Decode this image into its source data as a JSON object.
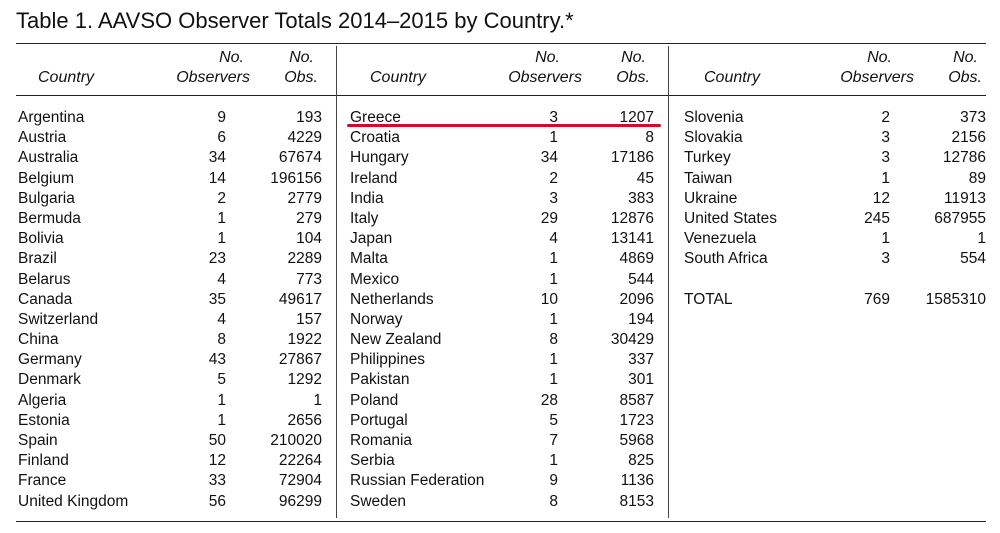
{
  "title": "Table 1. AAVSO Observer Totals 2014–2015 by Country.*",
  "headers": {
    "country": "Country",
    "no": "No.",
    "observers": "Observers",
    "obs": "Obs."
  },
  "columns": [
    [
      {
        "country": "Argentina",
        "observers": "9",
        "obs": "193"
      },
      {
        "country": "Austria",
        "observers": "6",
        "obs": "4229"
      },
      {
        "country": "Australia",
        "observers": "34",
        "obs": "67674"
      },
      {
        "country": "Belgium",
        "observers": "14",
        "obs": "196156"
      },
      {
        "country": "Bulgaria",
        "observers": "2",
        "obs": "2779"
      },
      {
        "country": "Bermuda",
        "observers": "1",
        "obs": "279"
      },
      {
        "country": "Bolivia",
        "observers": "1",
        "obs": "104"
      },
      {
        "country": "Brazil",
        "observers": "23",
        "obs": "2289"
      },
      {
        "country": "Belarus",
        "observers": "4",
        "obs": "773"
      },
      {
        "country": "Canada",
        "observers": "35",
        "obs": "49617"
      },
      {
        "country": "Switzerland",
        "observers": "4",
        "obs": "157"
      },
      {
        "country": "China",
        "observers": "8",
        "obs": "1922"
      },
      {
        "country": "Germany",
        "observers": "43",
        "obs": "27867"
      },
      {
        "country": "Denmark",
        "observers": "5",
        "obs": "1292"
      },
      {
        "country": "Algeria",
        "observers": "1",
        "obs": "1"
      },
      {
        "country": "Estonia",
        "observers": "1",
        "obs": "2656"
      },
      {
        "country": "Spain",
        "observers": "50",
        "obs": "210020"
      },
      {
        "country": "Finland",
        "observers": "12",
        "obs": "22264"
      },
      {
        "country": "France",
        "observers": "33",
        "obs": "72904"
      },
      {
        "country": "United Kingdom",
        "observers": "56",
        "obs": "96299"
      }
    ],
    [
      {
        "country": "Greece",
        "observers": "3",
        "obs": "1207"
      },
      {
        "country": "Croatia",
        "observers": "1",
        "obs": "8"
      },
      {
        "country": "Hungary",
        "observers": "34",
        "obs": "17186"
      },
      {
        "country": "Ireland",
        "observers": "2",
        "obs": "45"
      },
      {
        "country": "India",
        "observers": "3",
        "obs": "383"
      },
      {
        "country": "Italy",
        "observers": "29",
        "obs": "12876"
      },
      {
        "country": "Japan",
        "observers": "4",
        "obs": "13141"
      },
      {
        "country": "Malta",
        "observers": "1",
        "obs": "4869"
      },
      {
        "country": "Mexico",
        "observers": "1",
        "obs": "544"
      },
      {
        "country": "Netherlands",
        "observers": "10",
        "obs": "2096"
      },
      {
        "country": "Norway",
        "observers": "1",
        "obs": "194"
      },
      {
        "country": "New Zealand",
        "observers": "8",
        "obs": "30429"
      },
      {
        "country": "Philippines",
        "observers": "1",
        "obs": "337"
      },
      {
        "country": "Pakistan",
        "observers": "1",
        "obs": "301"
      },
      {
        "country": "Poland",
        "observers": "28",
        "obs": "8587"
      },
      {
        "country": "Portugal",
        "observers": "5",
        "obs": "1723"
      },
      {
        "country": "Romania",
        "observers": "7",
        "obs": "5968"
      },
      {
        "country": "Serbia",
        "observers": "1",
        "obs": "825"
      },
      {
        "country": "Russian Federation",
        "observers": "9",
        "obs": "1136"
      },
      {
        "country": "Sweden",
        "observers": "8",
        "obs": "8153"
      }
    ],
    [
      {
        "country": "Slovenia",
        "observers": "2",
        "obs": "373"
      },
      {
        "country": "Slovakia",
        "observers": "3",
        "obs": "2156"
      },
      {
        "country": "Turkey",
        "observers": "3",
        "obs": "12786"
      },
      {
        "country": "Taiwan",
        "observers": "1",
        "obs": "89"
      },
      {
        "country": "Ukraine",
        "observers": "12",
        "obs": "11913"
      },
      {
        "country": "United States",
        "observers": "245",
        "obs": "687955"
      },
      {
        "country": "Venezuela",
        "observers": "1",
        "obs": "1"
      },
      {
        "country": "South Africa",
        "observers": "3",
        "obs": "554"
      },
      {
        "country": "",
        "observers": "",
        "obs": ""
      },
      {
        "country": "TOTAL",
        "observers": "769",
        "obs": "1585310"
      }
    ]
  ],
  "highlight": {
    "country": "Greece",
    "color": "#c8102e"
  }
}
